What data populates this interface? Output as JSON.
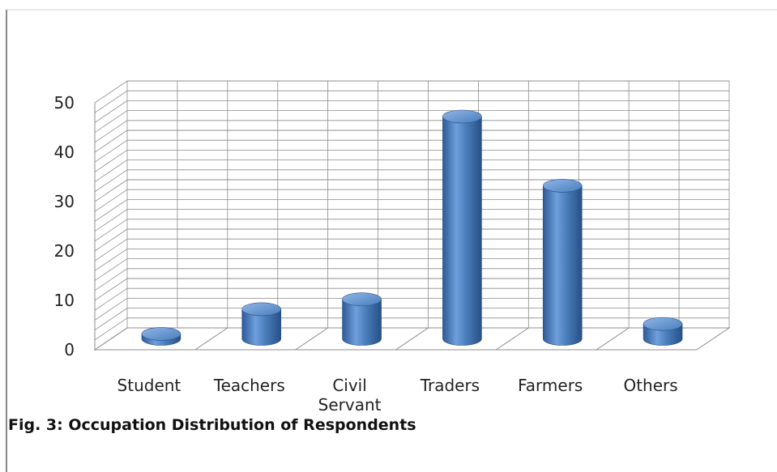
{
  "chart_data": {
    "type": "bar",
    "style": "3d-cylinder",
    "categories": [
      "Student",
      "Teachers",
      "Civil Servant",
      "Traders",
      "Farmers",
      "Others"
    ],
    "category_display": [
      [
        "Student"
      ],
      [
        "Teachers"
      ],
      [
        "Civil",
        "Servant"
      ],
      [
        "Traders"
      ],
      [
        "Farmers"
      ],
      [
        "Others"
      ]
    ],
    "values": [
      1,
      6,
      8,
      45,
      31,
      3
    ],
    "ylim": [
      0,
      50
    ],
    "yticks": [
      0,
      10,
      20,
      30,
      40,
      50
    ],
    "grid": true,
    "bar_color": "#4a7ebb",
    "xlabel": "",
    "ylabel": ""
  },
  "caption": "Fig. 3: Occupation Distribution of Respondents"
}
